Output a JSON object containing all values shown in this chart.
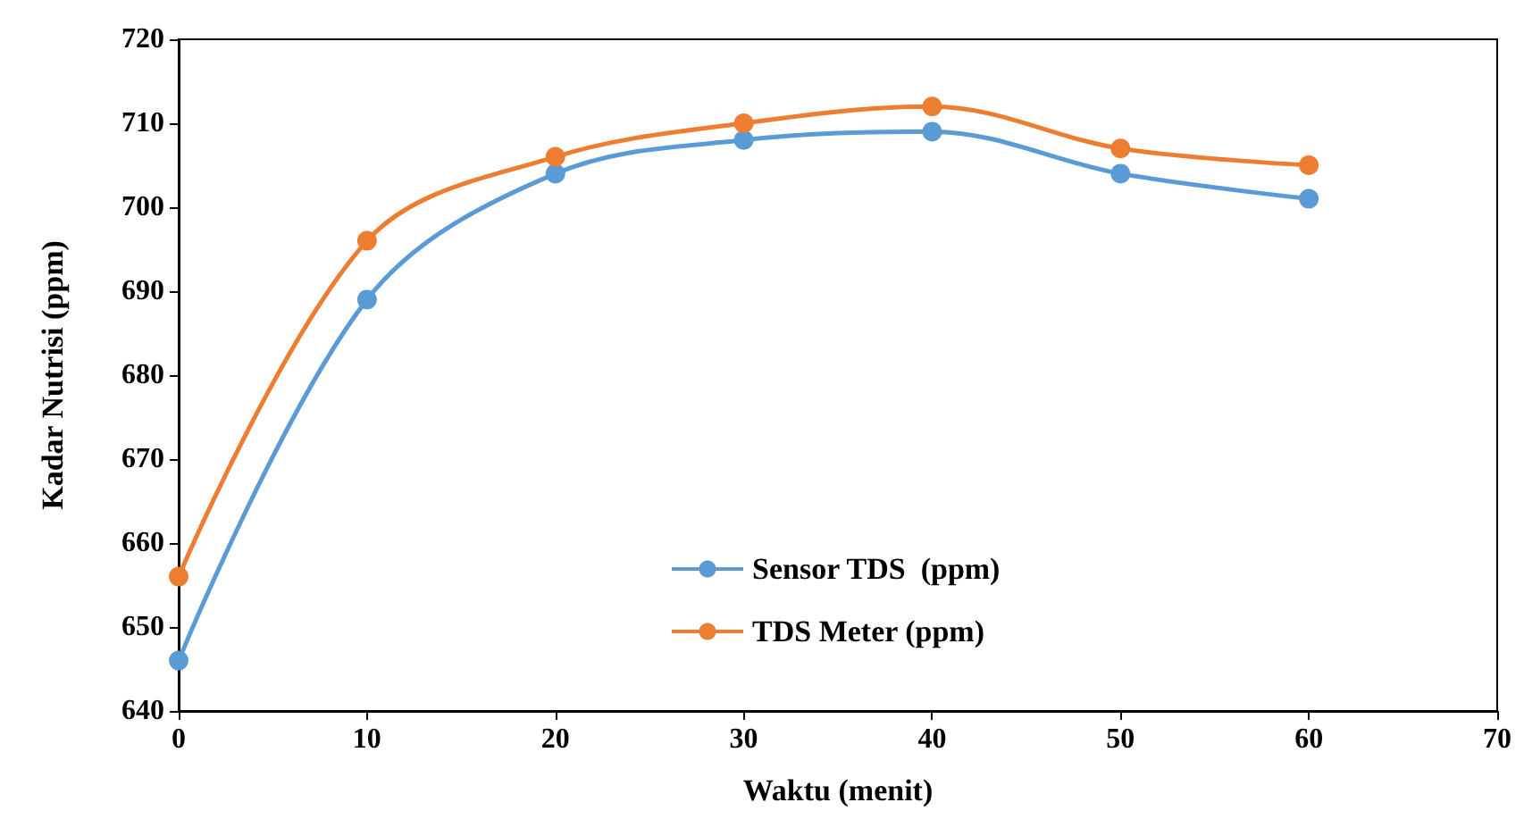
{
  "chart_data": {
    "type": "line",
    "xlabel": "Waktu (menit)",
    "ylabel": "Kadar Nutrisi (ppm)",
    "x": [
      0,
      10,
      20,
      30,
      40,
      50,
      60
    ],
    "series": [
      {
        "name": "Sensor TDS  (ppm)",
        "color": "#5b9bd5",
        "values": [
          646,
          689,
          704,
          708,
          709,
          704,
          701
        ]
      },
      {
        "name": "TDS Meter (ppm)",
        "color": "#ed7d31",
        "values": [
          656,
          696,
          706,
          710,
          712,
          707,
          705
        ]
      }
    ],
    "xlim": [
      0,
      70
    ],
    "xticks": [
      0,
      10,
      20,
      30,
      40,
      50,
      60,
      70
    ],
    "ylim": [
      640,
      720
    ],
    "yticks": [
      640,
      650,
      660,
      670,
      680,
      690,
      700,
      710,
      720
    ],
    "grid": false,
    "legend": "bottom",
    "marker": "circle",
    "line_style": "solid"
  }
}
